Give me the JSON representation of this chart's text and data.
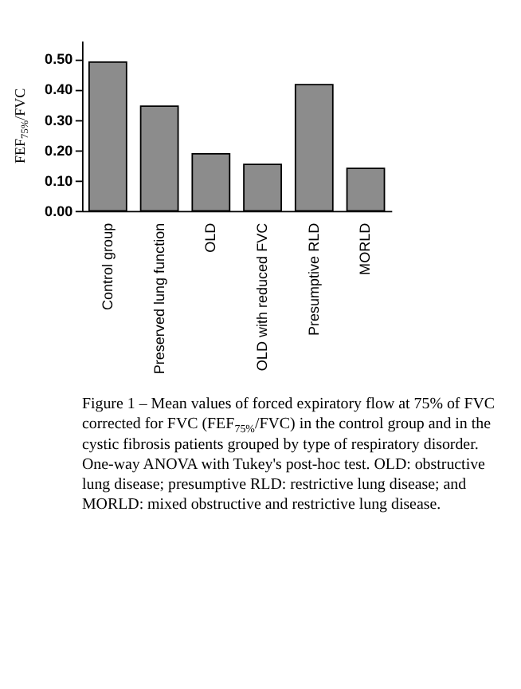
{
  "chart_data": {
    "type": "bar",
    "categories": [
      "Control group",
      "Preserved lung function",
      "OLD",
      "OLD with reduced FVC",
      "Presumptive RLD",
      "MORLD"
    ],
    "values": [
      0.49,
      0.345,
      0.188,
      0.153,
      0.416,
      0.14
    ],
    "color": "#8c8c8c",
    "ylabel": "FEF$_{75%}$/FVC",
    "ylim": [
      0,
      0.56
    ],
    "yticks": [
      {
        "value": 0,
        "label": "0.00"
      },
      {
        "value": 0.1,
        "label": "0.10"
      },
      {
        "value": 0.2,
        "label": "0.20"
      },
      {
        "value": 0.3,
        "label": "0.30"
      },
      {
        "value": 0.4,
        "label": "0.40"
      },
      {
        "value": 0.5,
        "label": "0.50"
      }
    ],
    "grid": false,
    "annotations": [
      "Figure 1 – Mean values of forced expiratory flow at 75% of FVC corrected for FVC (FEF$_{75%}$/FVC) in the control group and in the cystic fibrosis patients grouped by type of respiratory disorder. One-way ANOVA with Tukey's post-hoc test. OLD: obstructive lung disease; presumptive RLD: restrictive lung disease; and MORLD: mixed obstructive and restrictive lung disease."
    ]
  }
}
